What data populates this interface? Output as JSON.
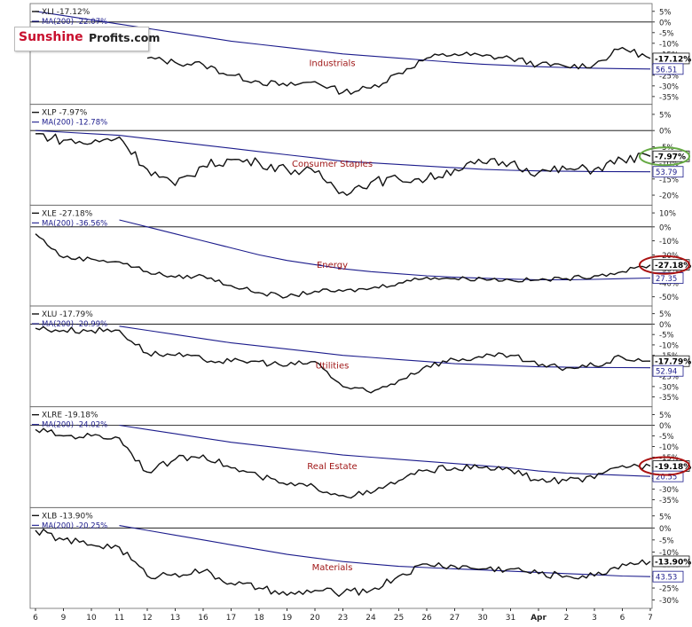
{
  "logo": {
    "word1": "Sunshine",
    "word2": "Profits.com"
  },
  "chart_data": {
    "type": "line",
    "x": [
      "6",
      "9",
      "10",
      "11",
      "12",
      "13",
      "16",
      "17",
      "18",
      "19",
      "20",
      "23",
      "24",
      "25",
      "26",
      "27",
      "30",
      "31",
      "Apr",
      "2",
      "3",
      "6",
      "7"
    ],
    "panels": [
      {
        "ticker_label": "XLI -17.12%",
        "ma_label": "MA(200) -22.07%",
        "title": "Industrials",
        "yticks": [
          "5%",
          "0%",
          "-5%",
          "-10%",
          "-15%",
          "-20%",
          "-25%",
          "-30%",
          "-35%"
        ],
        "ylim": [
          -37,
          7
        ],
        "price_tag": "-17.12%",
        "ma_tag": "56.51",
        "circle": null,
        "series": [
          {
            "name": "XLI",
            "values": [
              null,
              null,
              null,
              null,
              -17,
              -19,
              -20,
              -25,
              -28,
              -30,
              -28,
              -33,
              -31,
              -24,
              -17,
              -15,
              -16,
              -17,
              -20,
              -21,
              -20,
              -12,
              -17.12
            ]
          },
          {
            "name": "MA(200)",
            "values": [
              5,
              3,
              1,
              -1,
              -3,
              -5,
              -7,
              -9,
              -10.5,
              -12,
              -13.5,
              -15,
              -16,
              -17,
              -18,
              -19,
              -19.8,
              -20.4,
              -21,
              -21.4,
              -21.7,
              -21.9,
              -22.07
            ]
          }
        ]
      },
      {
        "ticker_label": "XLP -7.97%",
        "ma_label": "MA(200) -12.78%",
        "title": "Consumer Staples",
        "yticks": [
          "5%",
          "0%",
          "-5%",
          "-10%",
          "-15%",
          "-20%"
        ],
        "ylim": [
          -22,
          7
        ],
        "price_tag": "-7.97%",
        "ma_tag": "53.79",
        "circle": "#66aa44",
        "series": [
          {
            "name": "XLP",
            "values": [
              -1,
              -3,
              -4,
              -2,
              -12,
              -17,
              -11,
              -9,
              -10,
              -12,
              -13,
              -19,
              -16,
              -15,
              -15,
              -12,
              -10,
              -10,
              -13,
              -12,
              -12,
              -9,
              -7.97
            ]
          },
          {
            "name": "MA(200)",
            "values": [
              0,
              -0.5,
              -1,
              -1.5,
              -2.5,
              -3.5,
              -4.5,
              -5.5,
              -6.5,
              -7.5,
              -8.5,
              -9.5,
              -10,
              -10.5,
              -11,
              -11.5,
              -12,
              -12.3,
              -12.5,
              -12.6,
              -12.7,
              -12.75,
              -12.78
            ]
          }
        ]
      },
      {
        "ticker_label": "XLE -27.18%",
        "ma_label": "MA(200) -36.56%",
        "title": "Energy",
        "yticks": [
          "10%",
          "0%",
          "-10%",
          "-20%",
          "-30%",
          "-40%",
          "-50%"
        ],
        "ylim": [
          -54,
          13
        ],
        "price_tag": "-27.18%",
        "ma_tag": "27.35",
        "circle": "#aa1111",
        "series": [
          {
            "name": "XLE",
            "values": [
              -5,
              -22,
              -23,
              -25,
              -32,
              -36,
              -35,
              -42,
              -47,
              -50,
              -46,
              -46,
              -44,
              -40,
              -36,
              -37,
              -37,
              -38,
              -38,
              -37,
              -35,
              -32,
              -27.18
            ]
          },
          {
            "name": "MA(200)",
            "values": [
              null,
              null,
              null,
              5,
              0,
              -5,
              -10,
              -15,
              -20,
              -24,
              -27,
              -30,
              -32,
              -33.5,
              -35,
              -36,
              -36.7,
              -37.3,
              -37.8,
              -37.8,
              -37.5,
              -37,
              -36.56
            ]
          }
        ]
      },
      {
        "ticker_label": "XLU -17.79%",
        "ma_label": "MA(200) -20.99%",
        "title": "Utilities",
        "yticks": [
          "5%",
          "0%",
          "-5%",
          "-10%",
          "-15%",
          "-20%",
          "-25%",
          "-30%",
          "-35%"
        ],
        "ylim": [
          -38,
          7
        ],
        "price_tag": "-17.79%",
        "ma_tag": "52.94",
        "circle": null,
        "series": [
          {
            "name": "XLU",
            "values": [
              -2,
              -3,
              -3,
              -3,
              -14,
              -15,
              -17,
              -18,
              -18,
              -20,
              -18,
              -30,
              -33,
              -27,
              -20,
              -17,
              -16,
              -15,
              -20,
              -21,
              -20,
              -16,
              -17.79
            ]
          },
          {
            "name": "MA(200)",
            "values": [
              null,
              null,
              null,
              -1,
              -3,
              -5,
              -7,
              -9,
              -10.5,
              -12,
              -13.5,
              -15,
              -16,
              -17,
              -18,
              -19,
              -19.5,
              -20,
              -20.5,
              -20.7,
              -20.8,
              -20.9,
              -20.99
            ]
          }
        ]
      },
      {
        "ticker_label": "XLRE -19.18%",
        "ma_label": "MA(200) -24.02%",
        "title": "Real Estate",
        "yticks": [
          "5%",
          "0%",
          "-5%",
          "-10%",
          "-15%",
          "-20%",
          "-25%",
          "-30%",
          "-35%"
        ],
        "ylim": [
          -37,
          7
        ],
        "price_tag": "-19.18%",
        "ma_tag": "20.55",
        "circle": "#aa1111",
        "series": [
          {
            "name": "XLRE",
            "values": [
              -2,
              -5,
              -5,
              -6,
              -22,
              -16,
              -14,
              -20,
              -24,
              -28,
              -29,
              -33,
              -32,
              -26,
              -21,
              -20,
              -20,
              -21,
              -26,
              -26,
              -25,
              -19,
              -19.18
            ]
          },
          {
            "name": "MA(200)",
            "values": [
              null,
              null,
              null,
              0,
              -2,
              -4,
              -6,
              -8,
              -9.5,
              -11,
              -12.5,
              -14,
              -15,
              -16,
              -17,
              -18,
              -19,
              -20,
              -21.5,
              -22.5,
              -23,
              -23.5,
              -24.02
            ]
          }
        ]
      },
      {
        "ticker_label": "XLB -13.90%",
        "ma_label": "MA(200) -20.25%",
        "title": "Materials",
        "yticks": [
          "5%",
          "0%",
          "-5%",
          "-10%",
          "-15%",
          "-20%",
          "-25%",
          "-30%"
        ],
        "ylim": [
          -32,
          7
        ],
        "price_tag": "-13.90%",
        "ma_tag": "43.53",
        "circle": null,
        "series": [
          {
            "name": "XLB",
            "values": [
              -1,
              -5,
              -7,
              -8,
              -20,
              -19,
              -18,
              -23,
              -25,
              -28,
              -26,
              -27,
              -26,
              -20,
              -15,
              -16,
              -17,
              -17,
              -19,
              -20,
              -20,
              -15,
              -13.9
            ]
          },
          {
            "name": "MA(200)",
            "values": [
              null,
              null,
              null,
              1,
              -1,
              -3,
              -5,
              -7,
              -9,
              -11,
              -12.5,
              -14,
              -15,
              -16,
              -16.5,
              -17,
              -17.5,
              -18,
              -18.5,
              -19,
              -19.5,
              -20,
              -20.25
            ]
          }
        ]
      }
    ]
  }
}
